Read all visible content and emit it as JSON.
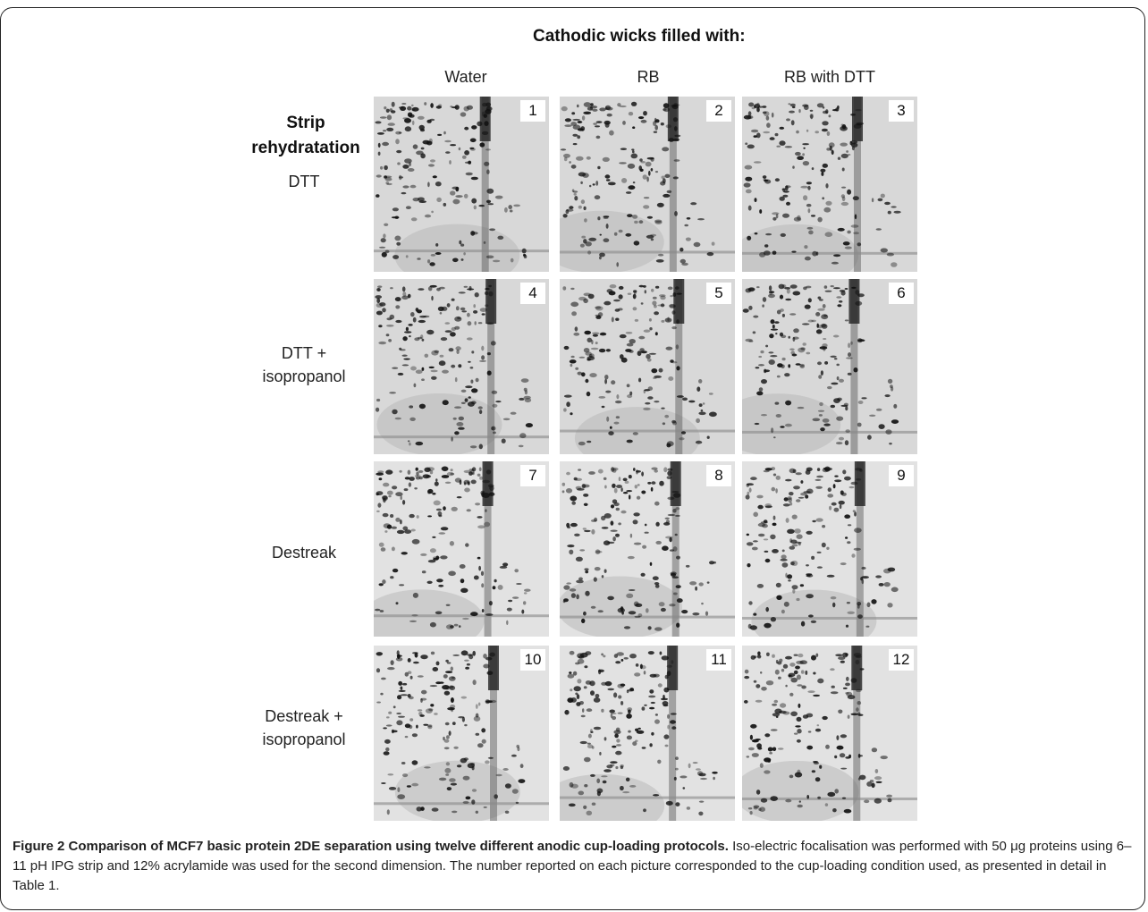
{
  "header": {
    "title": "Cathodic wicks filled with:",
    "columns": [
      "Water",
      "RB",
      "RB with DTT"
    ]
  },
  "rows": {
    "section_title_line1": "Strip",
    "section_title_line2": "rehydratation",
    "labels": [
      [
        "DTT"
      ],
      [
        "DTT +",
        "isopropanol"
      ],
      [
        "Destreak"
      ],
      [
        "Destreak +",
        "isopropanol"
      ]
    ]
  },
  "panels": [
    "1",
    "2",
    "3",
    "4",
    "5",
    "6",
    "7",
    "8",
    "9",
    "10",
    "11",
    "12"
  ],
  "caption": {
    "bold": "Figure 2 Comparison of MCF7 basic protein 2DE separation using twelve different anodic cup-loading protocols.",
    "text": " Iso-electric focalisation was performed with 50 μg proteins using 6–11 pH IPG strip and 12% acrylamide was used for the second dimension. The number reported on each picture corresponded to the cup-loading condition used, as presented in detail in Table 1."
  }
}
